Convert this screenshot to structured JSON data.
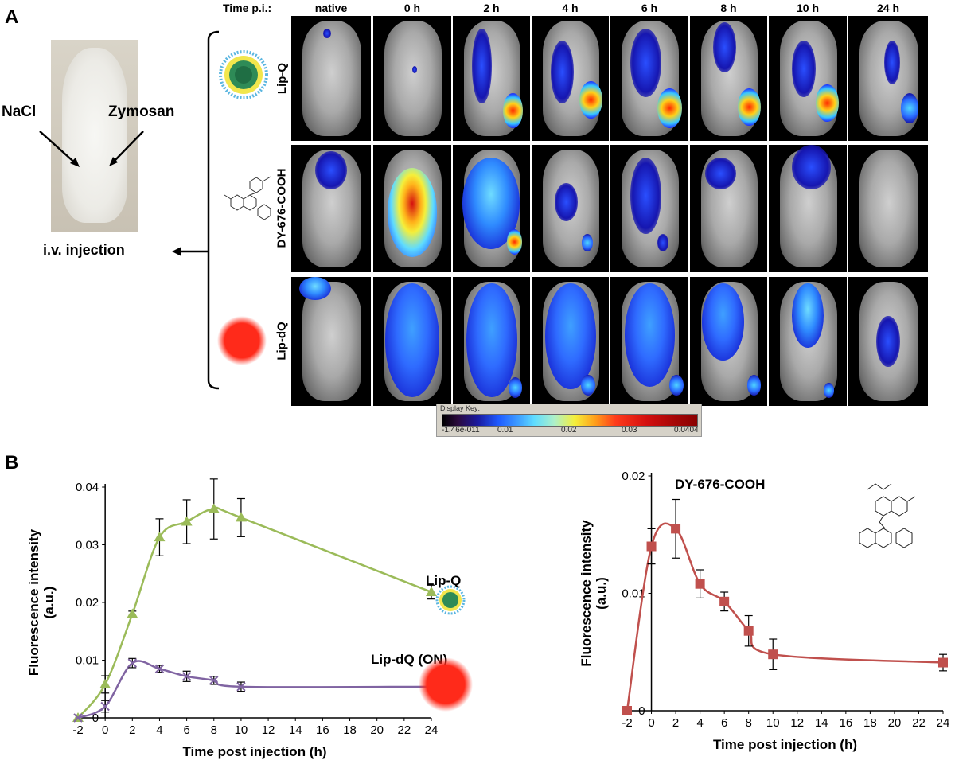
{
  "panel_a": {
    "label": "A",
    "photo_labels": {
      "left": "NaCl",
      "right": "Zymosan"
    },
    "injection_label": "i.v. injection",
    "time_header": "Time p.i.:",
    "columns": [
      "native",
      "0 h",
      "2 h",
      "4 h",
      "6 h",
      "8 h",
      "10 h",
      "24 h"
    ],
    "rows": [
      "Lip-Q",
      "DY-676-COOH",
      "Lip-dQ"
    ],
    "color_scale": {
      "title": "Display Key:",
      "ticks": [
        "-1.46e-011",
        "0.01",
        "0.02",
        "0.03",
        "0.0404"
      ]
    }
  },
  "panel_b": {
    "label": "B"
  },
  "chart_data": [
    {
      "type": "line",
      "title": "",
      "xlabel": "Time post injection (h)",
      "ylabel": "Fluorescence intensity (a.u.)",
      "xlim": [
        -2,
        24
      ],
      "ylim": [
        0,
        0.04
      ],
      "xticks": [
        "-2",
        "0",
        "2",
        "4",
        "6",
        "8",
        "10",
        "12",
        "14",
        "16",
        "18",
        "20",
        "22",
        "24"
      ],
      "yticks": [
        "0",
        "0.01",
        "0.02",
        "0.03",
        "0.04"
      ],
      "series": [
        {
          "name": "Lip-Q",
          "color": "#9bbb59",
          "marker": "triangle",
          "x": [
            -2,
            0,
            2,
            4,
            6,
            8,
            10,
            24
          ],
          "values": [
            0.0,
            0.0058,
            0.018,
            0.0313,
            0.034,
            0.0362,
            0.0347,
            0.0218
          ],
          "errors": [
            0.0,
            0.0015,
            0.0005,
            0.0032,
            0.0038,
            0.0052,
            0.0033,
            0.0012
          ]
        },
        {
          "name": "Lip-dQ (ON)",
          "color": "#8064a2",
          "marker": "x",
          "x": [
            -2,
            0,
            2,
            4,
            6,
            8,
            10,
            24
          ],
          "values": [
            0.0,
            0.002,
            0.0095,
            0.0085,
            0.0072,
            0.0065,
            0.0054,
            0.0054
          ],
          "errors": [
            0.0,
            0.001,
            0.0008,
            0.0006,
            0.0009,
            0.0007,
            0.0008,
            0.0004
          ]
        }
      ]
    },
    {
      "type": "line",
      "title": "DY-676-COOH",
      "xlabel": "Time post injection (h)",
      "ylabel": "Fluorescence intensity (a.u.)",
      "xlim": [
        -2,
        24
      ],
      "ylim": [
        0,
        0.02
      ],
      "xticks": [
        "-2",
        "0",
        "2",
        "4",
        "6",
        "8",
        "10",
        "12",
        "14",
        "16",
        "18",
        "20",
        "22",
        "24"
      ],
      "yticks": [
        "0",
        "0.01",
        "0.02"
      ],
      "series": [
        {
          "name": "DY-676-COOH",
          "color": "#c0504d",
          "marker": "square",
          "x": [
            -2,
            0,
            2,
            4,
            6,
            8,
            10,
            24
          ],
          "values": [
            0.0,
            0.014,
            0.0155,
            0.0108,
            0.0093,
            0.0068,
            0.0048,
            0.0041
          ],
          "errors": [
            0.0,
            0.0015,
            0.0025,
            0.0012,
            0.0008,
            0.0013,
            0.0013,
            0.0007
          ]
        }
      ]
    }
  ]
}
